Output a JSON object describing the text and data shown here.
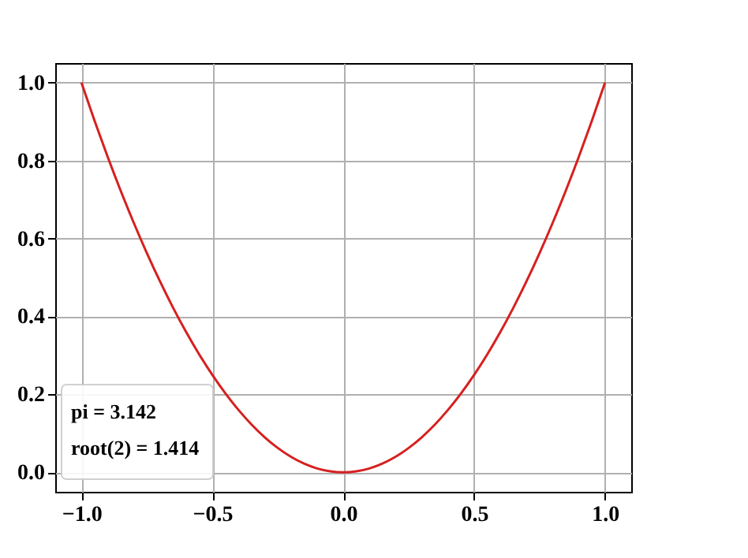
{
  "chart_data": {
    "type": "line",
    "x": [
      -1.0,
      -0.95,
      -0.9,
      -0.85,
      -0.8,
      -0.75,
      -0.7,
      -0.65,
      -0.6,
      -0.55,
      -0.5,
      -0.45,
      -0.4,
      -0.35,
      -0.3,
      -0.25,
      -0.2,
      -0.15,
      -0.1,
      -0.05,
      0.0,
      0.05,
      0.1,
      0.15,
      0.2,
      0.25,
      0.3,
      0.35,
      0.4,
      0.45,
      0.5,
      0.55,
      0.6,
      0.65,
      0.7,
      0.75,
      0.8,
      0.85,
      0.9,
      0.95,
      1.0
    ],
    "series": [
      {
        "color": "#d62020",
        "values": [
          1.0,
          0.9025,
          0.81,
          0.7225,
          0.64,
          0.5625,
          0.49,
          0.4225,
          0.36,
          0.3025,
          0.25,
          0.2025,
          0.16,
          0.1225,
          0.09,
          0.0625,
          0.04,
          0.0225,
          0.01,
          0.0025,
          0.0,
          0.0025,
          0.01,
          0.0225,
          0.04,
          0.0625,
          0.09,
          0.1225,
          0.16,
          0.2025,
          0.25,
          0.3025,
          0.36,
          0.4225,
          0.49,
          0.5625,
          0.64,
          0.7225,
          0.81,
          0.9025,
          1.0
        ]
      }
    ],
    "xlim": [
      -1.1,
      1.1
    ],
    "ylim": [
      -0.05,
      1.05
    ],
    "xticks": [
      {
        "value": -1,
        "label": "−1.0"
      },
      {
        "value": -0.5,
        "label": "−0.5"
      },
      {
        "value": 0,
        "label": "0.0"
      },
      {
        "value": 0.5,
        "label": "0.5"
      },
      {
        "value": 1,
        "label": "1.0"
      }
    ],
    "yticks": [
      {
        "value": 0,
        "label": "0.0"
      },
      {
        "value": 0.2,
        "label": "0.2"
      },
      {
        "value": 0.4,
        "label": "0.4"
      },
      {
        "value": 0.6,
        "label": "0.6"
      },
      {
        "value": 0.8,
        "label": "0.8"
      },
      {
        "value": 1,
        "label": "1.0"
      }
    ],
    "grid": true,
    "line_style": "solid",
    "marker": "none",
    "annotations": [
      "pi = 3.142",
      "root(2) = 1.414"
    ]
  }
}
